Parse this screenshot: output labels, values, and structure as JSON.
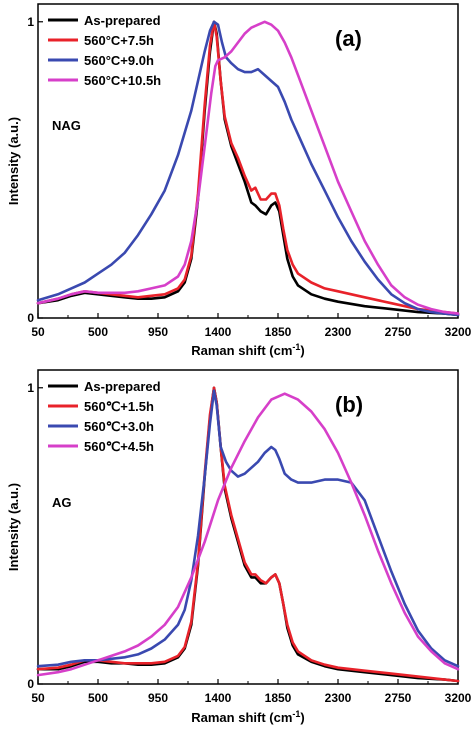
{
  "chart_data": [
    {
      "type": "line",
      "panel_label": "(a)",
      "sample_label": "NAG",
      "xlabel": "Raman shift (cm",
      "xlabel_sup": "-1",
      "xlabel_close": ")",
      "ylabel": "Intensity (a.u.)",
      "xlim": [
        50,
        3200
      ],
      "ylim": [
        0,
        1.06
      ],
      "x_ticks": [
        50,
        500,
        950,
        1400,
        1850,
        2300,
        2750,
        3200
      ],
      "y_ticks": [
        0,
        1
      ],
      "legend_position": "top-left",
      "series": [
        {
          "name": "As-prepared",
          "color": "#000000",
          "x": [
            50,
            200,
            300,
            400,
            500,
            600,
            700,
            800,
            900,
            1000,
            1100,
            1150,
            1200,
            1250,
            1300,
            1340,
            1370,
            1390,
            1420,
            1450,
            1500,
            1550,
            1600,
            1650,
            1680,
            1720,
            1760,
            1800,
            1830,
            1860,
            1890,
            1920,
            1960,
            2000,
            2100,
            2200,
            2300,
            2500,
            2700,
            2900,
            3100,
            3200
          ],
          "y": [
            0.05,
            0.06,
            0.075,
            0.085,
            0.08,
            0.075,
            0.07,
            0.065,
            0.065,
            0.07,
            0.09,
            0.12,
            0.2,
            0.4,
            0.7,
            0.9,
            1.0,
            0.96,
            0.8,
            0.67,
            0.58,
            0.52,
            0.46,
            0.39,
            0.38,
            0.36,
            0.35,
            0.38,
            0.39,
            0.36,
            0.28,
            0.2,
            0.14,
            0.11,
            0.08,
            0.065,
            0.055,
            0.04,
            0.03,
            0.02,
            0.015,
            0.01
          ]
        },
        {
          "name": "560°C+7.5h",
          "color": "#e8222a",
          "x": [
            50,
            200,
            300,
            400,
            500,
            600,
            700,
            800,
            900,
            1000,
            1100,
            1150,
            1200,
            1250,
            1300,
            1340,
            1370,
            1390,
            1420,
            1450,
            1500,
            1550,
            1600,
            1650,
            1680,
            1720,
            1760,
            1800,
            1830,
            1860,
            1890,
            1920,
            1960,
            2000,
            2100,
            2200,
            2300,
            2500,
            2700,
            2900,
            3100,
            3200
          ],
          "y": [
            0.05,
            0.065,
            0.08,
            0.09,
            0.085,
            0.08,
            0.075,
            0.07,
            0.075,
            0.08,
            0.1,
            0.13,
            0.21,
            0.42,
            0.72,
            0.92,
            1.0,
            0.95,
            0.8,
            0.68,
            0.59,
            0.54,
            0.48,
            0.43,
            0.44,
            0.4,
            0.4,
            0.42,
            0.42,
            0.38,
            0.3,
            0.23,
            0.18,
            0.15,
            0.12,
            0.1,
            0.09,
            0.07,
            0.05,
            0.03,
            0.02,
            0.015
          ]
        },
        {
          "name": "560°C+9.0h",
          "color": "#3a49b0",
          "x": [
            50,
            200,
            300,
            400,
            500,
            600,
            700,
            800,
            900,
            1000,
            1100,
            1200,
            1250,
            1300,
            1340,
            1370,
            1400,
            1430,
            1460,
            1500,
            1550,
            1600,
            1650,
            1700,
            1750,
            1800,
            1850,
            1900,
            1950,
            2000,
            2100,
            2200,
            2300,
            2400,
            2500,
            2600,
            2700,
            2800,
            2900,
            3000,
            3100,
            3200
          ],
          "y": [
            0.06,
            0.08,
            0.1,
            0.12,
            0.15,
            0.18,
            0.22,
            0.28,
            0.35,
            0.43,
            0.55,
            0.7,
            0.8,
            0.9,
            0.97,
            1.0,
            0.99,
            0.93,
            0.88,
            0.86,
            0.84,
            0.83,
            0.83,
            0.84,
            0.82,
            0.8,
            0.78,
            0.73,
            0.67,
            0.62,
            0.52,
            0.43,
            0.34,
            0.26,
            0.19,
            0.13,
            0.08,
            0.05,
            0.03,
            0.02,
            0.015,
            0.01
          ]
        },
        {
          "name": "560°C+10.5h",
          "color": "#d63fc9",
          "x": [
            50,
            200,
            300,
            400,
            500,
            600,
            700,
            800,
            900,
            1000,
            1100,
            1150,
            1200,
            1250,
            1300,
            1350,
            1380,
            1400,
            1450,
            1500,
            1550,
            1600,
            1650,
            1700,
            1750,
            1800,
            1850,
            1900,
            1950,
            2000,
            2100,
            2200,
            2300,
            2400,
            2500,
            2600,
            2700,
            2800,
            2900,
            3000,
            3100,
            3200
          ],
          "y": [
            0.05,
            0.065,
            0.08,
            0.09,
            0.085,
            0.085,
            0.085,
            0.09,
            0.1,
            0.11,
            0.14,
            0.18,
            0.26,
            0.4,
            0.58,
            0.76,
            0.85,
            0.87,
            0.88,
            0.9,
            0.93,
            0.96,
            0.98,
            0.99,
            1.0,
            0.99,
            0.97,
            0.93,
            0.88,
            0.82,
            0.7,
            0.58,
            0.46,
            0.36,
            0.26,
            0.18,
            0.11,
            0.07,
            0.045,
            0.03,
            0.02,
            0.015
          ]
        }
      ]
    },
    {
      "type": "line",
      "panel_label": "(b)",
      "sample_label": "AG",
      "xlabel": "Raman shift (cm",
      "xlabel_sup": "-1",
      "xlabel_close": ")",
      "ylabel": "Intensity (a.u.)",
      "xlim": [
        50,
        3200
      ],
      "ylim": [
        0,
        1.06
      ],
      "x_ticks": [
        50,
        500,
        950,
        1400,
        1850,
        2300,
        2750,
        3200
      ],
      "y_ticks": [
        0,
        1
      ],
      "legend_position": "top-left",
      "series": [
        {
          "name": "As-prepared",
          "color": "#000000",
          "x": [
            50,
            200,
            300,
            400,
            500,
            600,
            700,
            800,
            900,
            1000,
            1100,
            1150,
            1200,
            1250,
            1300,
            1340,
            1370,
            1390,
            1420,
            1450,
            1500,
            1550,
            1600,
            1650,
            1680,
            1720,
            1760,
            1800,
            1830,
            1860,
            1890,
            1920,
            1960,
            2000,
            2100,
            2200,
            2300,
            2500,
            2700,
            2900,
            3100,
            3200
          ],
          "y": [
            0.05,
            0.05,
            0.06,
            0.075,
            0.075,
            0.07,
            0.07,
            0.065,
            0.065,
            0.07,
            0.09,
            0.12,
            0.2,
            0.4,
            0.7,
            0.9,
            1.0,
            0.95,
            0.8,
            0.66,
            0.56,
            0.48,
            0.4,
            0.36,
            0.36,
            0.34,
            0.34,
            0.36,
            0.37,
            0.34,
            0.27,
            0.19,
            0.13,
            0.1,
            0.075,
            0.06,
            0.05,
            0.04,
            0.03,
            0.02,
            0.015,
            0.01
          ]
        },
        {
          "name": "560℃+1.5h",
          "color": "#e8222a",
          "x": [
            50,
            200,
            300,
            400,
            500,
            600,
            700,
            800,
            900,
            1000,
            1100,
            1150,
            1200,
            1250,
            1300,
            1340,
            1370,
            1390,
            1420,
            1450,
            1500,
            1550,
            1600,
            1650,
            1680,
            1720,
            1760,
            1800,
            1830,
            1860,
            1890,
            1920,
            1960,
            2000,
            2100,
            2200,
            2300,
            2500,
            2700,
            2900,
            3100,
            3200
          ],
          "y": [
            0.05,
            0.055,
            0.065,
            0.08,
            0.08,
            0.075,
            0.07,
            0.07,
            0.07,
            0.075,
            0.095,
            0.125,
            0.21,
            0.41,
            0.71,
            0.91,
            1.0,
            0.95,
            0.8,
            0.67,
            0.57,
            0.49,
            0.41,
            0.37,
            0.37,
            0.35,
            0.34,
            0.36,
            0.37,
            0.34,
            0.27,
            0.2,
            0.14,
            0.11,
            0.08,
            0.065,
            0.055,
            0.045,
            0.035,
            0.025,
            0.015,
            0.01
          ]
        },
        {
          "name": "560℃+3.0h",
          "color": "#3a49b0",
          "x": [
            50,
            200,
            300,
            400,
            500,
            600,
            700,
            800,
            900,
            1000,
            1100,
            1150,
            1200,
            1250,
            1300,
            1340,
            1370,
            1390,
            1420,
            1460,
            1500,
            1550,
            1600,
            1650,
            1700,
            1750,
            1800,
            1830,
            1860,
            1900,
            1950,
            2000,
            2100,
            2200,
            2300,
            2400,
            2500,
            2600,
            2700,
            2800,
            2900,
            3000,
            3100,
            3200
          ],
          "y": [
            0.06,
            0.065,
            0.075,
            0.08,
            0.08,
            0.085,
            0.09,
            0.1,
            0.12,
            0.15,
            0.2,
            0.25,
            0.35,
            0.5,
            0.7,
            0.88,
            0.99,
            0.94,
            0.8,
            0.75,
            0.72,
            0.7,
            0.71,
            0.73,
            0.75,
            0.78,
            0.8,
            0.79,
            0.76,
            0.71,
            0.69,
            0.68,
            0.68,
            0.69,
            0.69,
            0.68,
            0.62,
            0.5,
            0.38,
            0.27,
            0.18,
            0.12,
            0.08,
            0.06
          ]
        },
        {
          "name": "560℃+4.5h",
          "color": "#d63fc9",
          "x": [
            50,
            200,
            300,
            400,
            500,
            600,
            700,
            800,
            900,
            1000,
            1100,
            1200,
            1300,
            1400,
            1500,
            1600,
            1700,
            1800,
            1900,
            2000,
            2100,
            2200,
            2300,
            2400,
            2500,
            2600,
            2700,
            2800,
            2900,
            3000,
            3100,
            3200
          ],
          "y": [
            0.03,
            0.04,
            0.05,
            0.065,
            0.08,
            0.095,
            0.11,
            0.13,
            0.16,
            0.2,
            0.26,
            0.36,
            0.48,
            0.62,
            0.73,
            0.82,
            0.9,
            0.96,
            0.98,
            0.96,
            0.92,
            0.86,
            0.78,
            0.68,
            0.57,
            0.45,
            0.34,
            0.24,
            0.16,
            0.11,
            0.07,
            0.05
          ]
        }
      ]
    }
  ]
}
